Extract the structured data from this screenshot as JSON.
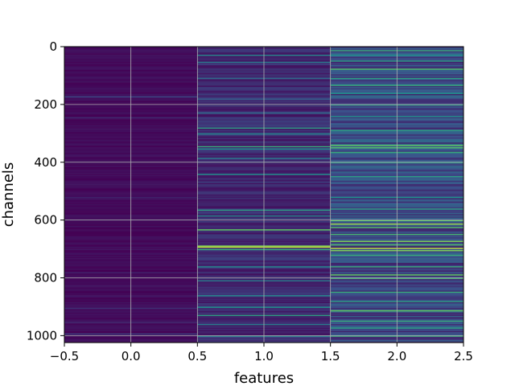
{
  "chart_data": {
    "type": "heatmap",
    "title": "",
    "xlabel": "features",
    "ylabel": "channels",
    "xlim": [
      -0.5,
      2.5
    ],
    "ylim": [
      1024,
      0
    ],
    "y_inverted": true,
    "grid": true,
    "colormap": "viridis",
    "n_columns": 3,
    "n_rows": 1024,
    "x_ticks": [
      -0.5,
      0.0,
      0.5,
      1.0,
      1.5,
      2.0,
      2.5
    ],
    "x_tick_labels": [
      "−0.5",
      "0.0",
      "0.5",
      "1.0",
      "1.5",
      "2.0",
      "2.5"
    ],
    "y_ticks": [
      0,
      200,
      400,
      600,
      800,
      1000
    ],
    "y_tick_labels": [
      "0",
      "200",
      "400",
      "600",
      "800",
      "1000"
    ],
    "columns": [
      {
        "x": 0,
        "base_level": 0.03,
        "stripes": [
          [
            175,
            0.22
          ],
          [
            245,
            0.12
          ],
          [
            520,
            0.1
          ],
          [
            780,
            0.1
          ],
          [
            905,
            0.14
          ],
          [
            955,
            0.12
          ],
          [
            995,
            0.18
          ]
        ]
      },
      {
        "x": 1,
        "base_level": 0.12,
        "stripes": [
          [
            30,
            0.45
          ],
          [
            55,
            0.4
          ],
          [
            110,
            0.35
          ],
          [
            180,
            0.3
          ],
          [
            230,
            0.35
          ],
          [
            280,
            0.55
          ],
          [
            300,
            0.45
          ],
          [
            345,
            0.6
          ],
          [
            355,
            0.5
          ],
          [
            385,
            0.4
          ],
          [
            440,
            0.5
          ],
          [
            565,
            0.55
          ],
          [
            585,
            0.45
          ],
          [
            635,
            0.75
          ],
          [
            690,
            0.8
          ],
          [
            693,
            0.9
          ],
          [
            700,
            0.6
          ],
          [
            760,
            0.45
          ],
          [
            810,
            0.4
          ],
          [
            860,
            0.45
          ],
          [
            900,
            0.5
          ],
          [
            930,
            0.55
          ],
          [
            960,
            0.4
          ],
          [
            1000,
            0.45
          ]
        ]
      },
      {
        "x": 2,
        "base_level": 0.22,
        "stripes": [
          [
            15,
            0.6
          ],
          [
            30,
            0.5
          ],
          [
            50,
            0.55
          ],
          [
            78,
            0.7
          ],
          [
            110,
            0.55
          ],
          [
            135,
            0.6
          ],
          [
            160,
            0.5
          ],
          [
            200,
            0.55
          ],
          [
            240,
            0.5
          ],
          [
            290,
            0.55
          ],
          [
            340,
            0.75
          ],
          [
            350,
            0.7
          ],
          [
            365,
            0.6
          ],
          [
            400,
            0.55
          ],
          [
            450,
            0.55
          ],
          [
            520,
            0.5
          ],
          [
            560,
            0.55
          ],
          [
            600,
            0.75
          ],
          [
            615,
            0.85
          ],
          [
            625,
            0.7
          ],
          [
            650,
            0.65
          ],
          [
            672,
            0.8
          ],
          [
            685,
            0.7
          ],
          [
            698,
            0.9
          ],
          [
            705,
            0.8
          ],
          [
            720,
            0.6
          ],
          [
            760,
            0.6
          ],
          [
            790,
            0.75
          ],
          [
            800,
            0.65
          ],
          [
            850,
            0.6
          ],
          [
            880,
            0.55
          ],
          [
            915,
            0.75
          ],
          [
            950,
            0.6
          ],
          [
            975,
            0.55
          ],
          [
            1000,
            0.6
          ]
        ]
      }
    ]
  }
}
